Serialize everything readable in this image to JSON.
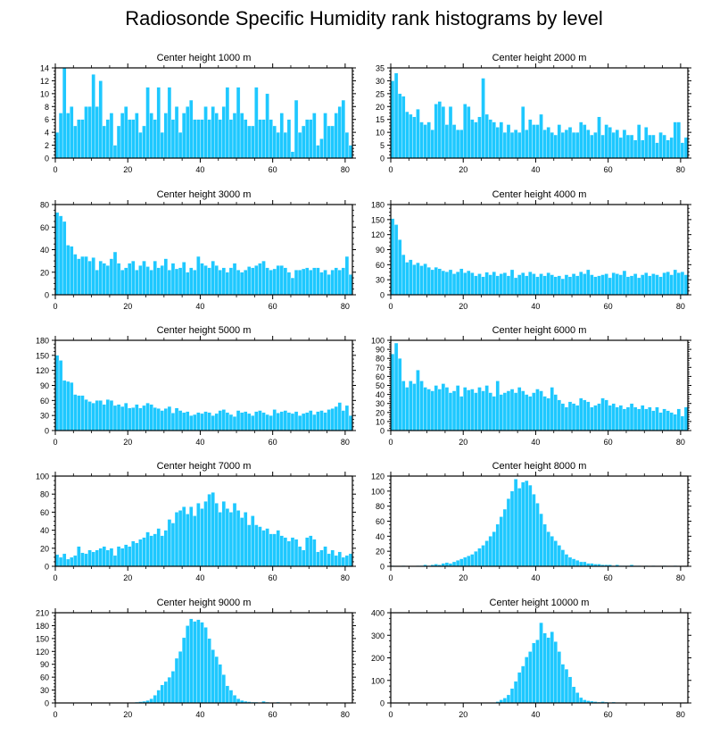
{
  "title": "Radiosonde Specific Humidity rank histograms by level",
  "colors": {
    "bar": "#1ec8ff",
    "bar_edge": "#ffffff",
    "axis": "#000000"
  },
  "chart_data": [
    {
      "type": "bar",
      "title": "Center height 1000 m",
      "xlim": [
        0,
        82
      ],
      "ylim": [
        0,
        14
      ],
      "yticks": [
        0,
        2,
        4,
        6,
        8,
        10,
        12,
        14
      ],
      "xticks": [
        0,
        20,
        40,
        60,
        80
      ],
      "values": [
        4,
        7,
        14,
        7,
        8,
        5,
        6,
        6,
        8,
        8,
        13,
        8,
        12,
        5,
        6,
        7,
        2,
        5,
        7,
        8,
        6,
        6,
        7,
        4,
        5,
        11,
        7,
        6,
        11,
        4,
        7,
        11,
        6,
        8,
        4,
        7,
        8,
        9,
        6,
        6,
        6,
        8,
        6,
        8,
        7,
        6,
        8,
        11,
        6,
        7,
        11,
        7,
        6,
        5,
        5,
        11,
        6,
        6,
        10,
        6,
        5,
        4,
        7,
        4,
        6,
        1,
        9,
        4,
        5,
        6,
        6,
        7,
        2,
        3,
        7,
        5,
        5,
        7,
        8,
        9,
        4,
        2
      ]
    },
    {
      "type": "bar",
      "title": "Center height 2000 m",
      "xlim": [
        0,
        82
      ],
      "ylim": [
        0,
        35
      ],
      "yticks": [
        0,
        5,
        10,
        15,
        20,
        25,
        30,
        35
      ],
      "xticks": [
        0,
        20,
        40,
        60,
        80
      ],
      "values": [
        30,
        33,
        25,
        24,
        18,
        17,
        16,
        19,
        14,
        13,
        14,
        11,
        21,
        22,
        20,
        13,
        20,
        13,
        11,
        11,
        21,
        20,
        15,
        14,
        16,
        31,
        17,
        15,
        14,
        12,
        14,
        10,
        13,
        10,
        11,
        10,
        20,
        11,
        15,
        13,
        13,
        17,
        11,
        12,
        10,
        9,
        13,
        10,
        11,
        12,
        10,
        10,
        14,
        13,
        11,
        9,
        10,
        16,
        9,
        13,
        12,
        10,
        11,
        8,
        11,
        9,
        9,
        7,
        13,
        7,
        12,
        9,
        9,
        6,
        10,
        9,
        7,
        8,
        14,
        14,
        6,
        8
      ]
    },
    {
      "type": "bar",
      "title": "Center height 3000 m",
      "xlim": [
        0,
        82
      ],
      "ylim": [
        0,
        80
      ],
      "yticks": [
        0,
        20,
        40,
        60,
        80
      ],
      "xticks": [
        0,
        20,
        40,
        60,
        80
      ],
      "values": [
        73,
        70,
        65,
        44,
        43,
        36,
        32,
        34,
        34,
        30,
        33,
        22,
        30,
        28,
        26,
        32,
        38,
        28,
        22,
        24,
        28,
        30,
        22,
        26,
        30,
        25,
        22,
        30,
        24,
        26,
        32,
        22,
        28,
        23,
        24,
        29,
        20,
        24,
        22,
        34,
        28,
        26,
        24,
        30,
        26,
        22,
        24,
        20,
        24,
        28,
        22,
        20,
        22,
        25,
        24,
        26,
        28,
        30,
        24,
        22,
        23,
        26,
        26,
        24,
        20,
        15,
        22,
        22,
        23,
        24,
        22,
        24,
        24,
        20,
        22,
        18,
        22,
        24,
        22,
        24,
        34,
        18
      ]
    },
    {
      "type": "bar",
      "title": "Center height 4000 m",
      "xlim": [
        0,
        82
      ],
      "ylim": [
        0,
        180
      ],
      "yticks": [
        0,
        30,
        60,
        90,
        120,
        150,
        180
      ],
      "xticks": [
        0,
        20,
        40,
        60,
        80
      ],
      "values": [
        152,
        140,
        110,
        80,
        65,
        70,
        60,
        64,
        58,
        62,
        55,
        50,
        55,
        52,
        48,
        46,
        50,
        42,
        46,
        52,
        44,
        48,
        44,
        38,
        42,
        36,
        45,
        40,
        46,
        38,
        42,
        44,
        38,
        50,
        34,
        40,
        44,
        38,
        46,
        42,
        36,
        42,
        38,
        44,
        40,
        36,
        38,
        32,
        40,
        36,
        42,
        38,
        46,
        42,
        50,
        40,
        36,
        38,
        40,
        42,
        34,
        44,
        42,
        40,
        48,
        36,
        38,
        42,
        34,
        40,
        44,
        38,
        42,
        40,
        36,
        44,
        46,
        40,
        50,
        44,
        46,
        40
      ]
    },
    {
      "type": "bar",
      "title": "Center height 5000 m",
      "xlim": [
        0,
        82
      ],
      "ylim": [
        0,
        180
      ],
      "yticks": [
        0,
        30,
        60,
        90,
        120,
        150,
        180
      ],
      "xticks": [
        0,
        20,
        40,
        60,
        80
      ],
      "values": [
        150,
        140,
        100,
        98,
        96,
        72,
        70,
        70,
        62,
        58,
        55,
        60,
        60,
        52,
        62,
        60,
        50,
        52,
        48,
        55,
        45,
        46,
        52,
        45,
        50,
        55,
        52,
        46,
        44,
        40,
        44,
        48,
        35,
        45,
        40,
        36,
        38,
        30,
        32,
        36,
        34,
        38,
        36,
        30,
        34,
        40,
        42,
        36,
        32,
        28,
        40,
        36,
        38,
        34,
        30,
        38,
        40,
        36,
        32,
        30,
        42,
        35,
        38,
        40,
        36,
        34,
        38,
        30,
        34,
        36,
        40,
        32,
        38,
        40,
        36,
        42,
        44,
        48,
        56,
        40,
        50,
        30
      ]
    },
    {
      "type": "bar",
      "title": "Center height 6000 m",
      "xlim": [
        0,
        82
      ],
      "ylim": [
        0,
        100
      ],
      "yticks": [
        0,
        10,
        20,
        30,
        40,
        50,
        60,
        70,
        80,
        90,
        100
      ],
      "xticks": [
        0,
        20,
        40,
        60,
        80
      ],
      "values": [
        85,
        97,
        80,
        55,
        48,
        55,
        52,
        67,
        55,
        48,
        46,
        44,
        50,
        46,
        52,
        48,
        42,
        44,
        50,
        38,
        48,
        45,
        46,
        42,
        48,
        44,
        50,
        42,
        38,
        55,
        40,
        42,
        44,
        46,
        42,
        48,
        44,
        40,
        38,
        42,
        46,
        44,
        38,
        36,
        48,
        40,
        34,
        30,
        26,
        32,
        30,
        28,
        36,
        34,
        32,
        26,
        28,
        30,
        36,
        34,
        28,
        30,
        26,
        28,
        24,
        26,
        30,
        26,
        24,
        28,
        24,
        26,
        22,
        26,
        20,
        24,
        22,
        20,
        18,
        24,
        16,
        26
      ]
    },
    {
      "type": "bar",
      "title": "Center height 7000 m",
      "xlim": [
        0,
        82
      ],
      "ylim": [
        0,
        100
      ],
      "yticks": [
        0,
        20,
        40,
        60,
        80,
        100
      ],
      "xticks": [
        0,
        20,
        40,
        60,
        80
      ],
      "values": [
        13,
        10,
        14,
        8,
        10,
        12,
        22,
        15,
        14,
        18,
        16,
        18,
        20,
        22,
        18,
        20,
        12,
        22,
        20,
        24,
        22,
        28,
        26,
        30,
        32,
        38,
        34,
        36,
        42,
        34,
        40,
        52,
        48,
        60,
        62,
        66,
        58,
        66,
        56,
        70,
        64,
        72,
        80,
        82,
        70,
        60,
        72,
        64,
        60,
        70,
        62,
        54,
        60,
        46,
        56,
        46,
        44,
        40,
        42,
        36,
        36,
        40,
        34,
        32,
        28,
        32,
        30,
        22,
        18,
        32,
        34,
        30,
        16,
        18,
        22,
        14,
        18,
        12,
        16,
        10,
        12,
        14
      ]
    },
    {
      "type": "bar",
      "title": "Center height 8000 m",
      "xlim": [
        0,
        82
      ],
      "ylim": [
        0,
        120
      ],
      "yticks": [
        0,
        20,
        40,
        60,
        80,
        100,
        120
      ],
      "xticks": [
        0,
        20,
        40,
        60,
        80
      ],
      "values": [
        1,
        0,
        0,
        1,
        0,
        0,
        0,
        1,
        1,
        2,
        1,
        2,
        3,
        2,
        4,
        5,
        4,
        6,
        8,
        10,
        12,
        14,
        16,
        20,
        24,
        28,
        34,
        40,
        46,
        56,
        66,
        76,
        90,
        100,
        116,
        104,
        112,
        114,
        108,
        96,
        84,
        70,
        56,
        46,
        40,
        34,
        28,
        22,
        16,
        12,
        10,
        8,
        6,
        6,
        4,
        4,
        3,
        3,
        2,
        2,
        2,
        1,
        2,
        1,
        1,
        1,
        2,
        1,
        1,
        0,
        1,
        0,
        1,
        0,
        0,
        1,
        0,
        0,
        1,
        0,
        0,
        0
      ]
    },
    {
      "type": "bar",
      "title": "Center height 9000 m",
      "xlim": [
        0,
        82
      ],
      "ylim": [
        0,
        210
      ],
      "yticks": [
        0,
        30,
        60,
        90,
        120,
        150,
        180,
        210
      ],
      "xticks": [
        0,
        20,
        40,
        60,
        80
      ],
      "values": [
        0,
        0,
        0,
        0,
        0,
        0,
        0,
        0,
        0,
        0,
        0,
        0,
        0,
        0,
        0,
        0,
        0,
        0,
        0,
        0,
        0,
        1,
        2,
        3,
        4,
        6,
        10,
        18,
        30,
        42,
        50,
        60,
        74,
        104,
        120,
        152,
        180,
        196,
        190,
        194,
        188,
        176,
        150,
        124,
        108,
        90,
        66,
        40,
        30,
        18,
        10,
        6,
        4,
        3,
        2,
        2,
        1,
        4,
        2,
        1,
        1,
        2,
        1,
        1,
        1,
        0,
        1,
        0,
        1,
        0,
        0,
        1,
        0,
        0,
        0,
        0,
        0,
        0,
        0,
        0,
        0,
        0
      ]
    },
    {
      "type": "bar",
      "title": "Center height 10000 m",
      "xlim": [
        0,
        82
      ],
      "ylim": [
        0,
        400
      ],
      "yticks": [
        0,
        100,
        200,
        300,
        400
      ],
      "xticks": [
        0,
        20,
        40,
        60,
        80
      ],
      "values": [
        0,
        0,
        0,
        0,
        0,
        0,
        0,
        0,
        0,
        0,
        0,
        0,
        0,
        0,
        0,
        0,
        0,
        0,
        0,
        0,
        0,
        0,
        0,
        0,
        0,
        0,
        0,
        0,
        2,
        6,
        14,
        22,
        36,
        64,
        96,
        136,
        164,
        204,
        228,
        266,
        280,
        356,
        310,
        290,
        316,
        272,
        228,
        172,
        150,
        116,
        72,
        46,
        24,
        14,
        10,
        8,
        6,
        4,
        6,
        4,
        2,
        4,
        2,
        2,
        2,
        1,
        2,
        1,
        1,
        2,
        1,
        0,
        1,
        0,
        1,
        0,
        0,
        1,
        0,
        0,
        0,
        0
      ]
    }
  ]
}
